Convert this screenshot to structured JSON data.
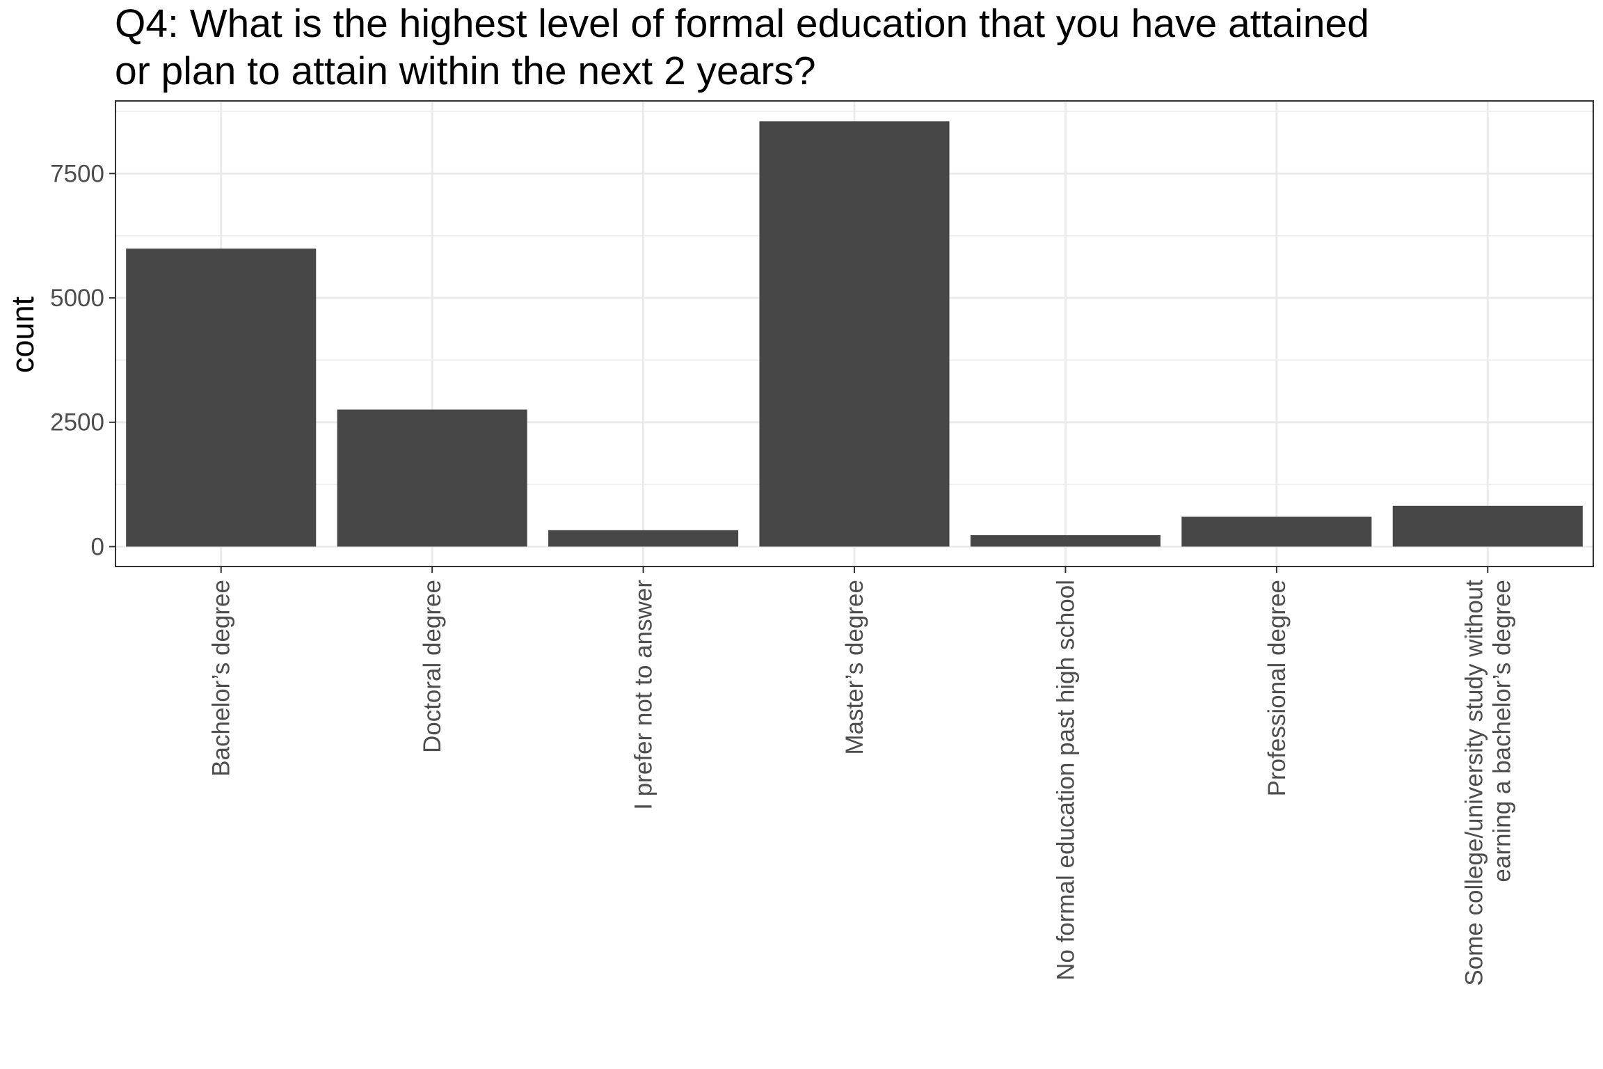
{
  "chart_data": {
    "type": "bar",
    "title": [
      "Q4: What is the highest level of formal education that you have attained",
      "or plan to attain within the next 2 years?"
    ],
    "xlabel": "",
    "ylabel": "count",
    "categories": [
      [
        "Bachelor’s degree"
      ],
      [
        "Doctoral degree"
      ],
      [
        "I prefer not to answer"
      ],
      [
        "Master’s degree"
      ],
      [
        "No formal education past high school"
      ],
      [
        "Professional degree"
      ],
      [
        "Some college/university study without",
        "earning a bachelor’s degree"
      ]
    ],
    "values": [
      5990,
      2755,
      330,
      8550,
      230,
      600,
      820
    ],
    "ylim": [
      -400,
      8960
    ],
    "yticks": [
      0,
      2500,
      5000,
      7500
    ],
    "ytick_labels": [
      "0",
      "2500",
      "5000",
      "7500"
    ],
    "grid": true,
    "colors": {
      "bar": "#474747",
      "grid": "#ebebeb",
      "border": "#333333",
      "tick_text": "#4d4d4d",
      "text": "#000000"
    }
  }
}
